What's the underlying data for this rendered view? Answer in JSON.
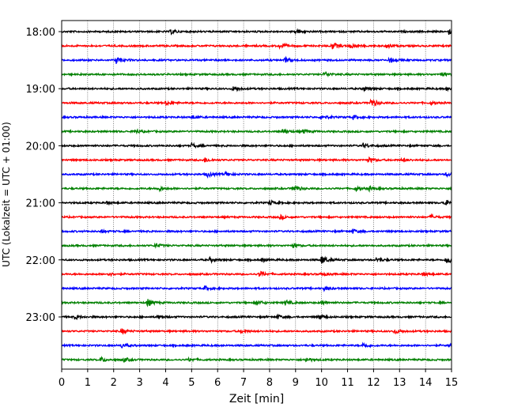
{
  "chart_data": {
    "type": "line",
    "title": "",
    "xlabel": "Zeit  [min]",
    "ylabel": "UTC (Lokalzeit = UTC + 01:00)",
    "xlim": [
      0,
      15
    ],
    "x_ticks": [
      0,
      1,
      2,
      3,
      4,
      5,
      6,
      7,
      8,
      9,
      10,
      11,
      12,
      13,
      14,
      15
    ],
    "y_tick_labels": [
      "18:00",
      "19:00",
      "20:00",
      "21:00",
      "22:00",
      "23:00"
    ],
    "grid": "vertical dotted lines at each minute",
    "trace_colors": [
      "#000000",
      "#ff0000",
      "#0000ff",
      "#008000"
    ],
    "series": [
      {
        "start": "18:00",
        "events": [
          [
            4.2,
            0.4
          ],
          [
            9.0,
            0.45
          ],
          [
            14.9,
            0.5
          ]
        ]
      },
      {
        "start": "18:15",
        "events": [
          [
            8.4,
            0.55
          ],
          [
            10.4,
            0.7
          ],
          [
            11.1,
            0.45
          ],
          [
            12.5,
            0.4
          ]
        ]
      },
      {
        "start": "18:30",
        "events": [
          [
            2.1,
            0.7
          ],
          [
            8.6,
            0.45
          ],
          [
            12.6,
            0.45
          ]
        ]
      },
      {
        "start": "18:45",
        "events": [
          [
            10.1,
            0.5
          ],
          [
            14.6,
            0.35
          ]
        ]
      },
      {
        "start": "19:00",
        "events": [
          [
            6.6,
            0.45
          ],
          [
            11.6,
            0.45
          ],
          [
            14.8,
            0.3
          ]
        ]
      },
      {
        "start": "19:15",
        "events": [
          [
            4.0,
            0.4
          ],
          [
            11.9,
            0.8
          ],
          [
            14.2,
            0.3
          ]
        ]
      },
      {
        "start": "19:30",
        "events": [
          [
            10.0,
            0.45
          ],
          [
            11.2,
            0.4
          ],
          [
            5.0,
            0.3
          ]
        ]
      },
      {
        "start": "19:45",
        "events": [
          [
            2.8,
            0.45
          ],
          [
            8.5,
            0.5
          ],
          [
            9.3,
            0.4
          ]
        ]
      },
      {
        "start": "20:00",
        "events": [
          [
            5.0,
            0.4
          ],
          [
            11.6,
            0.45
          ]
        ]
      },
      {
        "start": "20:15",
        "events": [
          [
            5.5,
            0.45
          ],
          [
            11.8,
            0.5
          ],
          [
            13.1,
            0.3
          ]
        ]
      },
      {
        "start": "20:30",
        "events": [
          [
            5.6,
            0.45
          ],
          [
            6.3,
            0.45
          ],
          [
            14.8,
            0.35
          ]
        ]
      },
      {
        "start": "20:45",
        "events": [
          [
            3.7,
            0.45
          ],
          [
            8.9,
            0.65
          ],
          [
            11.3,
            0.45
          ],
          [
            11.8,
            0.35
          ]
        ]
      },
      {
        "start": "21:00",
        "events": [
          [
            1.7,
            0.3
          ],
          [
            8.0,
            0.45
          ],
          [
            14.7,
            0.55
          ]
        ]
      },
      {
        "start": "21:15",
        "events": [
          [
            8.4,
            0.35
          ],
          [
            14.2,
            0.35
          ]
        ]
      },
      {
        "start": "21:30",
        "events": [
          [
            1.5,
            0.3
          ],
          [
            11.2,
            0.35
          ]
        ]
      },
      {
        "start": "21:45",
        "events": [
          [
            3.6,
            0.45
          ],
          [
            8.9,
            0.35
          ]
        ]
      },
      {
        "start": "22:00",
        "events": [
          [
            5.7,
            0.4
          ],
          [
            7.7,
            0.35
          ],
          [
            10.0,
            0.85
          ],
          [
            12.1,
            0.4
          ],
          [
            14.8,
            0.85
          ]
        ]
      },
      {
        "start": "22:15",
        "events": [
          [
            1.8,
            0.3
          ],
          [
            7.6,
            0.5
          ],
          [
            10.0,
            0.3
          ],
          [
            13.9,
            0.35
          ]
        ]
      },
      {
        "start": "22:30",
        "events": [
          [
            5.5,
            0.4
          ],
          [
            10.1,
            0.35
          ]
        ]
      },
      {
        "start": "22:45",
        "events": [
          [
            3.3,
            0.7
          ],
          [
            7.5,
            0.45
          ],
          [
            8.6,
            0.45
          ],
          [
            10.0,
            0.3
          ]
        ]
      },
      {
        "start": "23:00",
        "events": [
          [
            0.5,
            0.4
          ],
          [
            3.7,
            0.35
          ],
          [
            8.3,
            0.35
          ],
          [
            9.9,
            0.5
          ]
        ]
      },
      {
        "start": "23:15",
        "events": [
          [
            2.3,
            0.45
          ],
          [
            6.9,
            0.3
          ],
          [
            12.8,
            0.45
          ]
        ]
      },
      {
        "start": "23:30",
        "events": [
          [
            2.3,
            0.45
          ],
          [
            11.6,
            0.45
          ],
          [
            14.9,
            0.35
          ]
        ]
      },
      {
        "start": "23:45",
        "events": [
          [
            1.5,
            0.45
          ],
          [
            2.4,
            0.35
          ],
          [
            4.9,
            0.3
          ],
          [
            9.4,
            0.35
          ]
        ]
      }
    ]
  }
}
